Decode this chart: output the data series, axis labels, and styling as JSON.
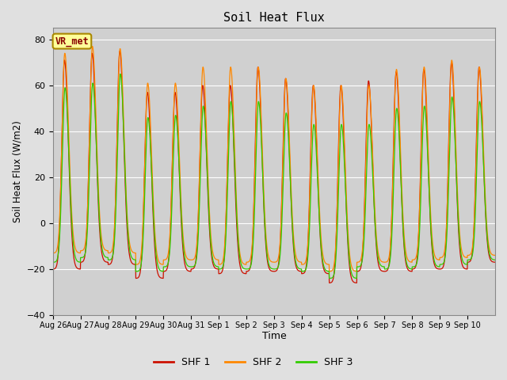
{
  "title": "Soil Heat Flux",
  "ylabel": "Soil Heat Flux (W/m2)",
  "xlabel": "Time",
  "ylim": [
    -40,
    85
  ],
  "yticks": [
    -40,
    -20,
    0,
    20,
    40,
    60,
    80
  ],
  "fig_bg_color": "#e0e0e0",
  "plot_bg_color": "#d0d0d0",
  "line_colors": [
    "#cc1100",
    "#ff8800",
    "#33cc00"
  ],
  "legend_labels": [
    "SHF 1",
    "SHF 2",
    "SHF 3"
  ],
  "annotation_text": "VR_met",
  "annotation_box_color": "#ffff99",
  "annotation_border_color": "#aa8800",
  "xtick_labels": [
    "Aug 26",
    "Aug 27",
    "Aug 28",
    "Aug 29",
    "Aug 30",
    "Aug 31",
    "Sep 1",
    "Sep 2",
    "Sep 3",
    "Sep 4",
    "Sep 5",
    "Sep 6",
    "Sep 7",
    "Sep 8",
    "Sep 9",
    "Sep 10"
  ],
  "day_peaks_shf1": [
    71,
    74,
    75,
    57,
    57,
    60,
    60,
    68,
    63,
    60,
    60,
    62,
    66,
    67,
    70,
    68
  ],
  "day_peaks_shf2": [
    74,
    77,
    76,
    61,
    61,
    68,
    68,
    68,
    63,
    60,
    60,
    60,
    67,
    68,
    71,
    68
  ],
  "day_peaks_shf3": [
    59,
    61,
    65,
    46,
    47,
    51,
    53,
    53,
    48,
    43,
    43,
    43,
    50,
    51,
    55,
    53
  ],
  "day_troughs_shf1": [
    -20,
    -17,
    -18,
    -24,
    -21,
    -20,
    -22,
    -21,
    -21,
    -22,
    -26,
    -21,
    -21,
    -20,
    -20,
    -17
  ],
  "day_troughs_shf2": [
    -13,
    -12,
    -13,
    -18,
    -16,
    -16,
    -18,
    -17,
    -17,
    -18,
    -21,
    -17,
    -17,
    -16,
    -15,
    -14
  ],
  "day_troughs_shf3": [
    -17,
    -15,
    -16,
    -21,
    -19,
    -19,
    -20,
    -20,
    -20,
    -21,
    -24,
    -19,
    -20,
    -19,
    -18,
    -16
  ],
  "n_days": 16,
  "pts_per_day": 144
}
